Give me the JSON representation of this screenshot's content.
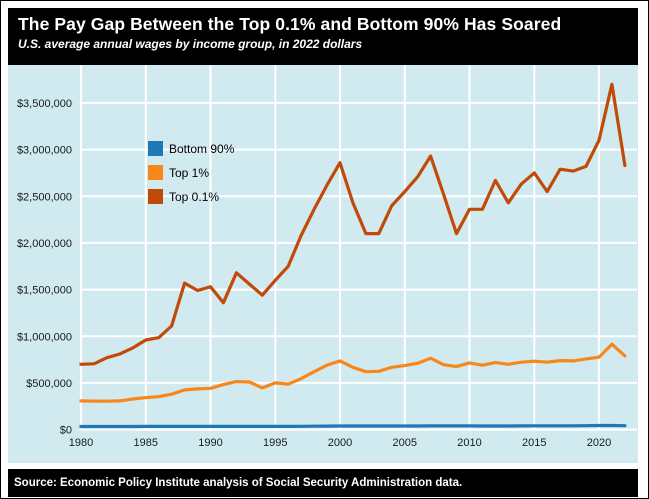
{
  "header": {
    "title": "The Pay Gap Between the Top 0.1% and Bottom 90% Has Soared",
    "subtitle": "U.S. average annual wages by income group, in 2022 dollars"
  },
  "source": "Source: Economic Policy Institute analysis of Social Security Administration data.",
  "colors": {
    "background": "#d0eaf0",
    "titlebar": "#000000",
    "gridline": "#ffffff",
    "axis_text": "#1a1a1a",
    "bottom90": "#1f77b4",
    "top1": "#f8871b",
    "top01": "#c14a09"
  },
  "chart_data": {
    "type": "line",
    "title": "The Pay Gap Between the Top 0.1% and Bottom 90% Has Soared",
    "subtitle": "U.S. average annual wages by income group, in 2022 dollars",
    "xlabel": "",
    "ylabel": "",
    "grid": true,
    "legend_position": "upper-left",
    "xlim": [
      1979,
      2022
    ],
    "ylim": [
      0,
      3700000
    ],
    "xticks": [
      1980,
      1985,
      1990,
      1995,
      2000,
      2005,
      2010,
      2015,
      2020
    ],
    "yticks": [
      {
        "value": 0,
        "label": "$0"
      },
      {
        "value": 500000,
        "label": "$500,000"
      },
      {
        "value": 1000000,
        "label": "$1,000,000"
      },
      {
        "value": 1500000,
        "label": "$1,500,000"
      },
      {
        "value": 2000000,
        "label": "$2,000,000"
      },
      {
        "value": 2500000,
        "label": "$2,500,000"
      },
      {
        "value": 3000000,
        "label": "$3,000,000"
      },
      {
        "value": 3500000,
        "label": "$3,500,000"
      }
    ],
    "x": [
      1979,
      1980,
      1981,
      1982,
      1983,
      1984,
      1985,
      1986,
      1987,
      1988,
      1989,
      1990,
      1991,
      1992,
      1993,
      1994,
      1995,
      1996,
      1997,
      1998,
      1999,
      2000,
      2001,
      2002,
      2003,
      2004,
      2005,
      2006,
      2007,
      2008,
      2009,
      2010,
      2011,
      2012,
      2013,
      2014,
      2015,
      2016,
      2017,
      2018,
      2019,
      2020,
      2021,
      2022
    ],
    "series": [
      {
        "name": "Bottom 90%",
        "color": "#1f77b4",
        "values": [
          33500,
          32900,
          32800,
          33000,
          33100,
          33700,
          34000,
          34700,
          34800,
          34700,
          34300,
          34000,
          33800,
          34200,
          34100,
          34000,
          34200,
          34500,
          35400,
          36700,
          37500,
          38300,
          38600,
          38700,
          38800,
          38900,
          38800,
          39100,
          39800,
          39300,
          39600,
          39500,
          38900,
          38900,
          38900,
          39200,
          40200,
          40500,
          41000,
          41200,
          42100,
          43800,
          44400,
          41500
        ]
      },
      {
        "name": "Top 1%",
        "color": "#f8871b",
        "values": [
          310000,
          307000,
          305000,
          304000,
          307000,
          328000,
          343000,
          353000,
          379000,
          425000,
          436000,
          443000,
          482000,
          514000,
          510000,
          447000,
          500000,
          487000,
          545000,
          620000,
          690000,
          736000,
          668000,
          620000,
          625000,
          668000,
          686000,
          711000,
          765000,
          695000,
          675000,
          715000,
          690000,
          718000,
          700000,
          722000,
          733000,
          722000,
          739000,
          736000,
          757000,
          776000,
          915000,
          790000
        ]
      },
      {
        "name": "Top 0.1%",
        "color": "#c14a09",
        "values": [
          710000,
          700000,
          705000,
          770000,
          810000,
          875000,
          960000,
          985000,
          1110000,
          1570000,
          1490000,
          1530000,
          1360000,
          1680000,
          1560000,
          1440000,
          1600000,
          1750000,
          2080000,
          2360000,
          2620000,
          2860000,
          2430000,
          2100000,
          2100000,
          2400000,
          2550000,
          2710000,
          2930000,
          2520000,
          2100000,
          2360000,
          2360000,
          2670000,
          2430000,
          2630000,
          2750000,
          2550000,
          2790000,
          2770000,
          2820000,
          3100000,
          3700000,
          2830000
        ]
      }
    ]
  }
}
